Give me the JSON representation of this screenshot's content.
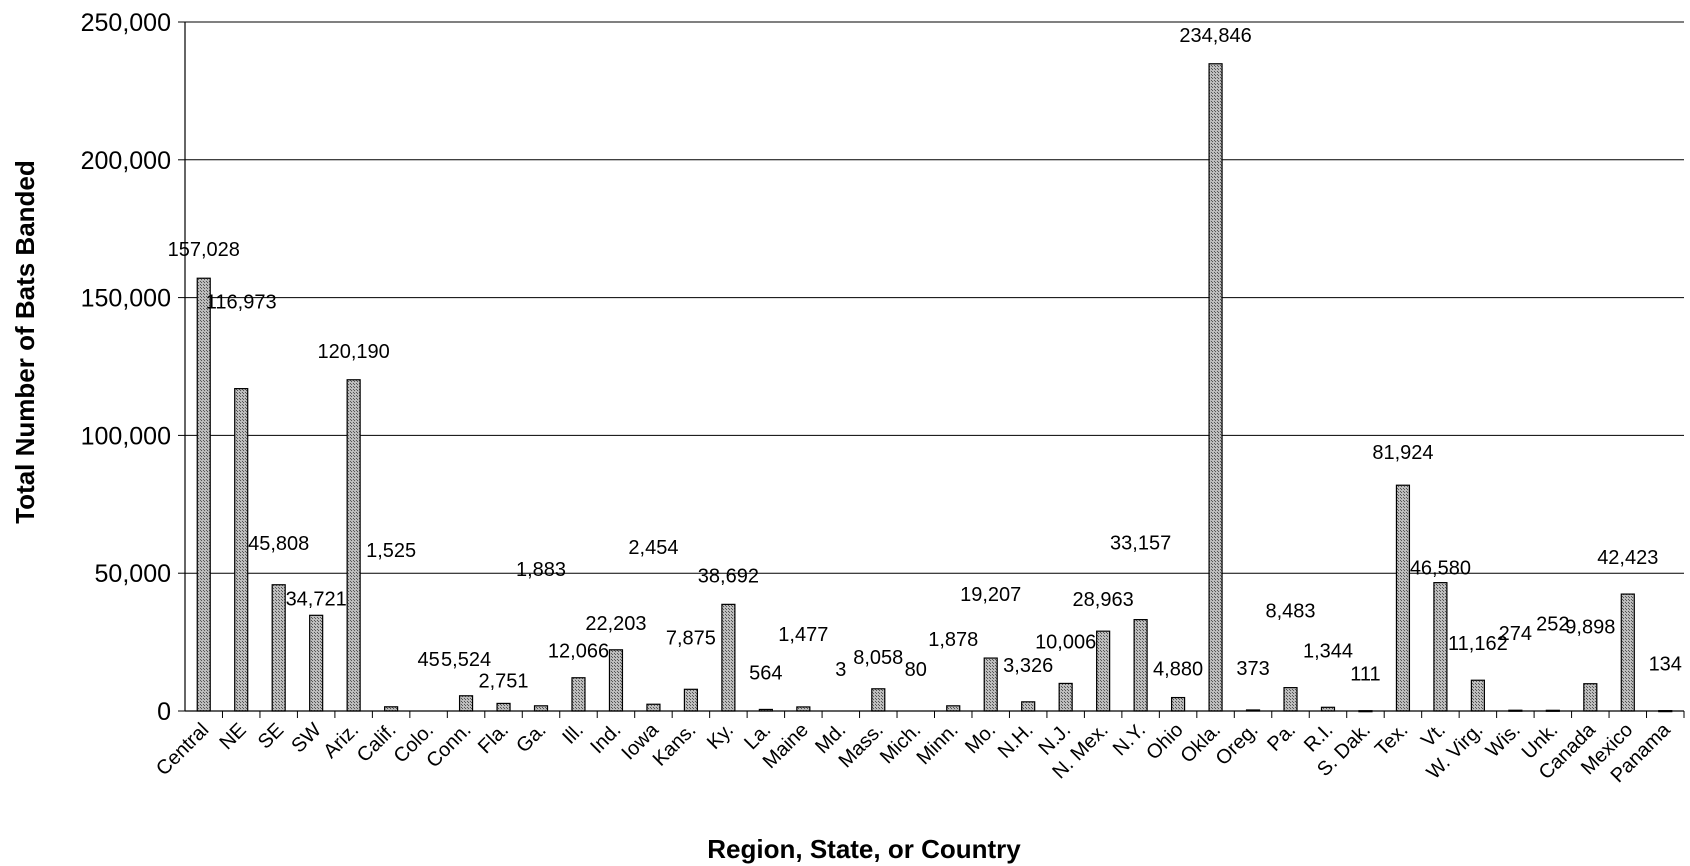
{
  "chart_data": {
    "type": "bar",
    "title": "",
    "xlabel": "Region, State, or Country",
    "ylabel": "Total Number of Bats Banded",
    "ylim": [
      0,
      250000
    ],
    "yticks": [
      0,
      50000,
      100000,
      150000,
      200000,
      250000
    ],
    "ytick_labels": [
      "0",
      "50,000",
      "100,000",
      "150,000",
      "200,000",
      "250,000"
    ],
    "grid": true,
    "legend": "none",
    "bar_color": "#a8a8a8",
    "categories": [
      "Central",
      "NE",
      "SE",
      "SW",
      "Ariz.",
      "Calif.",
      "Colo.",
      "Conn.",
      "Fla.",
      "Ga.",
      "Ill.",
      "Ind.",
      "Iowa",
      "Kans.",
      "Ky.",
      "La.",
      "Maine",
      "Md.",
      "Mass.",
      "Mich.",
      "Minn.",
      "Mo.",
      "N.H.",
      "N.J.",
      "N. Mex.",
      "N.Y.",
      "Ohio",
      "Okla.",
      "Oreg.",
      "Pa.",
      "R.I.",
      "S. Dak.",
      "Tex.",
      "Vt.",
      "W. Virg.",
      "Wis.",
      "Unk.",
      "Canada",
      "Mexico",
      "Panama"
    ],
    "values": [
      157028,
      116973,
      45808,
      34721,
      120190,
      1525,
      45,
      5524,
      2751,
      1883,
      12066,
      22203,
      2454,
      7875,
      38692,
      564,
      1477,
      3,
      8058,
      80,
      1878,
      19207,
      3326,
      10006,
      28963,
      33157,
      4880,
      234846,
      373,
      8483,
      1344,
      111,
      81924,
      46580,
      11162,
      274,
      252,
      9898,
      42423,
      134
    ],
    "data_labels": [
      "157,028",
      "116,973",
      "45,808",
      "34,721",
      "120,190",
      "1,525",
      "45",
      "5,524",
      "2,751",
      "1,883",
      "12,066",
      "22,203",
      "2,454",
      "7,875",
      "38,692",
      "564",
      "1,477",
      "3",
      "8,058",
      "80",
      "1,878",
      "19,207",
      "3,326",
      "10,006",
      "28,963",
      "33,157",
      "4,880",
      "234,846",
      "373",
      "8,483",
      "1,344",
      "111",
      "81,924",
      "46,580",
      "11,162",
      "274",
      "252",
      "9,898",
      "42,423",
      "134"
    ]
  }
}
